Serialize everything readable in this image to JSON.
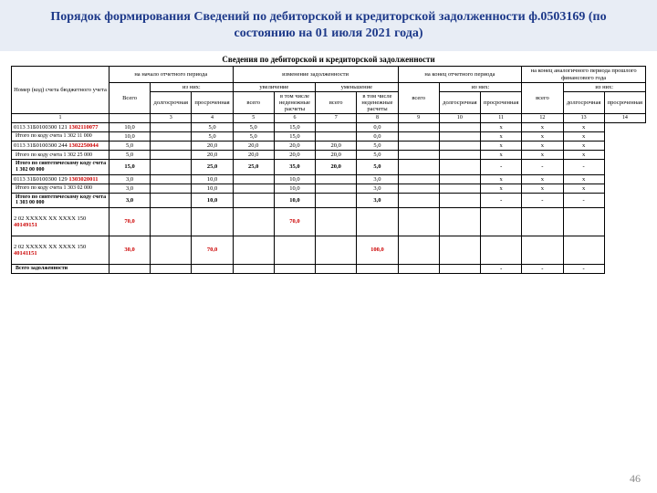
{
  "title": "Порядок формирования Сведений по дебиторской и кредиторской задолженности ф.0503169 (по состоянию на 01 июля 2021 года)",
  "subtitle": "Сведения по дебиторской и кредиторской задолженности",
  "page_number": "46",
  "header": {
    "acct_label": "Номер (код) счета бюджетного учета",
    "period_start": "на начало отчетного периода",
    "change": "изменение задолженности",
    "period_end": "на конец отчетного периода",
    "prior_year": "на конец аналогичного периода прошлого финансового года",
    "vsego": "Всего",
    "of_which": "из них:",
    "increase": "увеличение",
    "decrease": "уменьшение",
    "longterm": "долгосрочная",
    "overdue": "просроченная",
    "sub_total": "всего",
    "noncash": "в том числе неденежные расчеты"
  },
  "colnums": [
    "1",
    "",
    "3",
    "4",
    "5",
    "6",
    "7",
    "8",
    "9",
    "10",
    "11",
    "12",
    "13",
    "14"
  ],
  "rows": [
    {
      "label_pre": "0113 31Б0100300 121 ",
      "label_red": "1302110077",
      "cells": [
        "10,0",
        "",
        "5,0",
        "5,0",
        "15,0",
        "",
        "0,0",
        "",
        "",
        "x",
        "x",
        "x"
      ]
    },
    {
      "sub": "Итого по коду счета ",
      "label_bold": "1 302 11 000",
      "cells": [
        "10,0",
        "",
        "5,0",
        "5,0",
        "15,0",
        "",
        "0,0",
        "",
        "",
        "x",
        "x",
        "x"
      ]
    },
    {
      "label_pre": "0113 31Б0100300 244 ",
      "label_red": "1302250044",
      "cells": [
        "5,0",
        "",
        "20,0",
        "20,0",
        "20,0",
        "20,0",
        "5,0",
        "",
        "",
        "x",
        "x",
        "x"
      ]
    },
    {
      "sub": "Итого по коду счета ",
      "label_bold": "1 302 25 000",
      "cells": [
        "5,0",
        "",
        "20,0",
        "20,0",
        "20,0",
        "20,0",
        "5,0",
        "",
        "",
        "x",
        "x",
        "x"
      ]
    },
    {
      "sub": "Итого по синтетическому коду счета ",
      "label_bold": "1 302 00 000",
      "bold": true,
      "cells": [
        "15,0",
        "",
        "25,0",
        "25,0",
        "35,0",
        "20,0",
        "5,0",
        "",
        "",
        "-",
        "-",
        "-"
      ]
    },
    {
      "label_pre": "0113 31Б0100300 129 ",
      "label_red": "1303020011",
      "cells": [
        "3,0",
        "",
        "10,0",
        "",
        "10,0",
        "",
        "3,0",
        "",
        "",
        "x",
        "x",
        "x"
      ]
    },
    {
      "sub": "Итого по коду счета ",
      "label_bold": "1 303 02 000",
      "cells": [
        "3,0",
        "",
        "10,0",
        "",
        "10,0",
        "",
        "3,0",
        "",
        "",
        "x",
        "x",
        "x"
      ]
    },
    {
      "sub": "Итого по синтетическому коду счета ",
      "label_bold": "1 303 00 000",
      "bold": true,
      "cells": [
        "3,0",
        "",
        "10,0",
        "",
        "10,0",
        "",
        "3,0",
        "",
        "",
        "-",
        "-",
        "-"
      ]
    },
    {
      "label_pre": "2 02 XXXXX XX XXXX 150 ",
      "label_red": "40149151",
      "tall": true,
      "red_cells": true,
      "cells": [
        "70,0",
        "",
        "",
        "",
        "70,0",
        "",
        "",
        "",
        "",
        "",
        "",
        ""
      ]
    },
    {
      "label_pre": "2 02 XXXXX XX XXXX 150 ",
      "label_red": "40141151",
      "tall": true,
      "red_cells": true,
      "cells": [
        "30,0",
        "",
        "70,0",
        "",
        "",
        "",
        "100,0",
        "",
        "",
        "",
        "",
        ""
      ]
    },
    {
      "sub": "",
      "label_bold": "Всего задолженности",
      "bold": true,
      "cells": [
        "",
        "",
        "",
        "",
        "",
        "",
        "",
        "",
        "",
        "-",
        "-",
        "-"
      ]
    }
  ]
}
